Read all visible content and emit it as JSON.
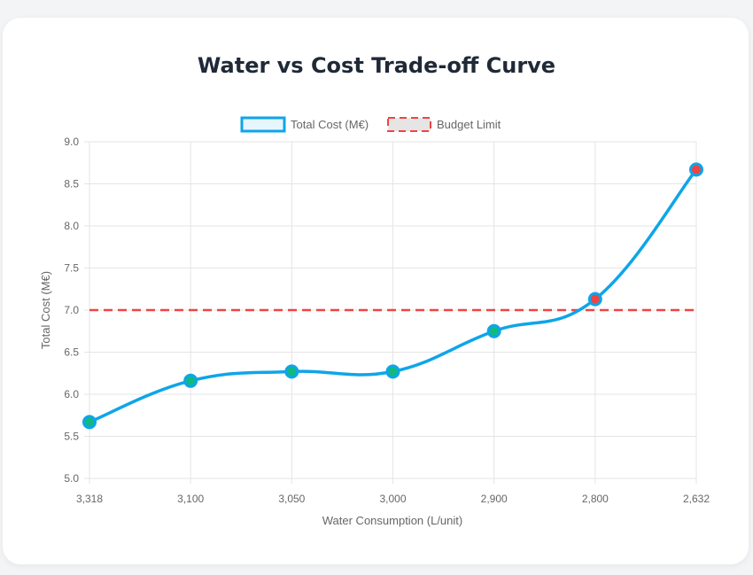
{
  "chart_data": {
    "type": "line",
    "title": "Water vs Cost Trade-off Curve",
    "xlabel": "Water Consumption (L/unit)",
    "ylabel": "Total Cost (M€)",
    "categories": [
      "3,318",
      "3,100",
      "3,050",
      "3,000",
      "2,900",
      "2,800",
      "2,632"
    ],
    "ylim": [
      5.0,
      9.0
    ],
    "yticks": [
      "5.0",
      "5.5",
      "6.0",
      "6.5",
      "7.0",
      "7.5",
      "8.0",
      "8.5",
      "9.0"
    ],
    "grid": true,
    "legend_position": "top",
    "series": [
      {
        "name": "Total Cost (M€)",
        "values": [
          5.67,
          6.16,
          6.27,
          6.27,
          6.75,
          7.13,
          8.67
        ],
        "color": "#0ea5e9",
        "point_colors": [
          "#10b981",
          "#10b981",
          "#10b981",
          "#10b981",
          "#10b981",
          "#ef4444",
          "#ef4444"
        ]
      },
      {
        "name": "Budget Limit",
        "value": 7.0,
        "color": "#ef4444",
        "style": "dashed"
      }
    ]
  }
}
